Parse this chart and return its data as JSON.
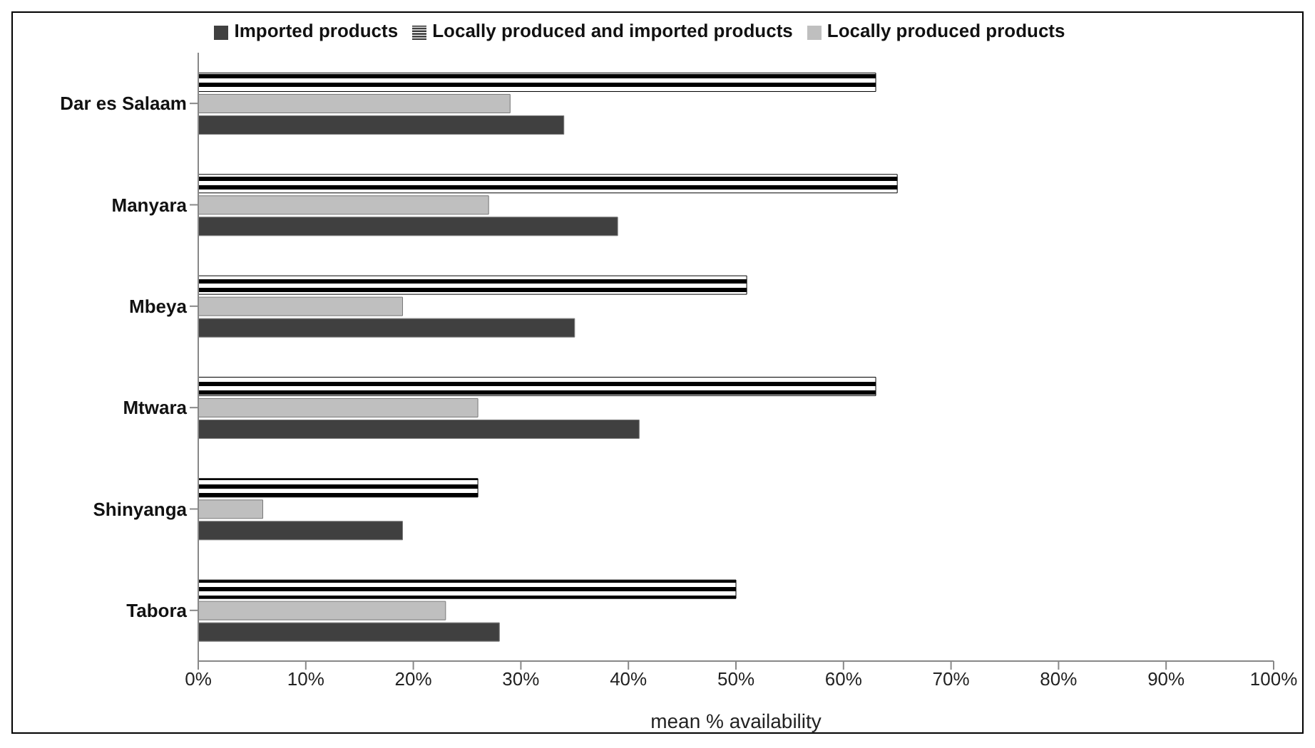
{
  "chart_data": {
    "type": "bar",
    "orientation": "horizontal",
    "xlabel": "mean % availability",
    "categories": [
      "Dar es Salaam",
      "Manyara",
      "Mbeya",
      "Mtwara",
      "Shinyanga",
      "Tabora"
    ],
    "series": [
      {
        "name": "Locally produced and imported products",
        "color": "#000000",
        "values": [
          63,
          65,
          51,
          63,
          26,
          50
        ]
      },
      {
        "name": "Locally produced products",
        "color": "#bfbfbf",
        "values": [
          29,
          27,
          19,
          26,
          6,
          23
        ]
      },
      {
        "name": "Imported products",
        "color": "#404040",
        "values": [
          34,
          39,
          35,
          41,
          19,
          28
        ]
      }
    ],
    "xlim": [
      0,
      100
    ],
    "xticks": [
      {
        "value": 0,
        "label": "0%"
      },
      {
        "value": 10,
        "label": "10%"
      },
      {
        "value": 20,
        "label": "20%"
      },
      {
        "value": 30,
        "label": "30%"
      },
      {
        "value": 40,
        "label": "40%"
      },
      {
        "value": 50,
        "label": "50%"
      },
      {
        "value": 60,
        "label": "60%"
      },
      {
        "value": 70,
        "label": "70%"
      },
      {
        "value": 80,
        "label": "80%"
      },
      {
        "value": 90,
        "label": "90%"
      },
      {
        "value": 100,
        "label": "100%"
      }
    ],
    "grid": false,
    "legend": "top"
  }
}
